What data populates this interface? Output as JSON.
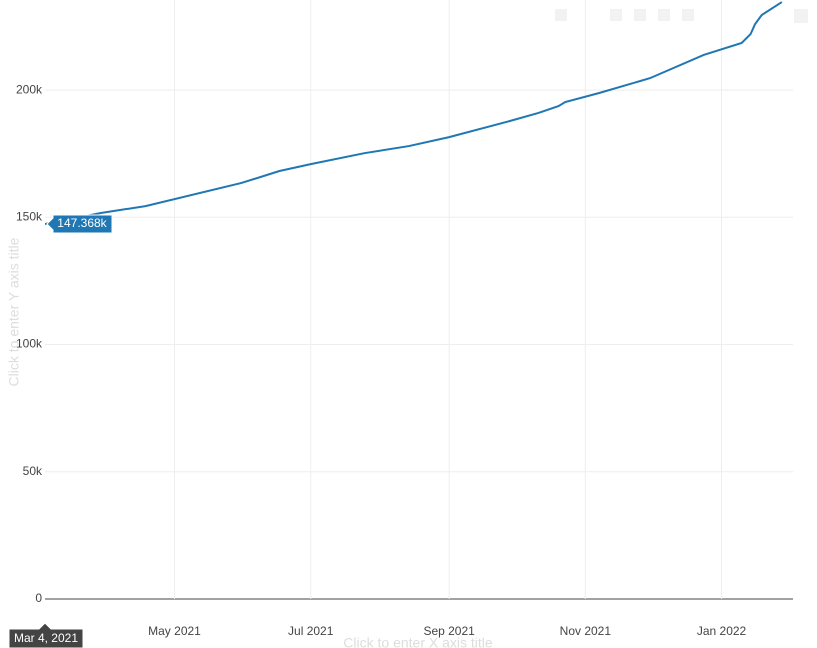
{
  "chart_data": {
    "type": "line",
    "x_title": "Click to enter X axis title",
    "y_title": "Click to enter Y axis title",
    "x": [
      "2021-03-04",
      "2021-03-29",
      "2021-04-18",
      "2021-05-31",
      "2021-06-17",
      "2021-07-01",
      "2021-07-25",
      "2021-08-14",
      "2021-09-01",
      "2021-09-28",
      "2021-10-11",
      "2021-10-20",
      "2021-10-23",
      "2021-11-07",
      "2021-11-30",
      "2021-12-24",
      "2022-01-10",
      "2022-01-14",
      "2022-01-16",
      "2022-01-19",
      "2022-01-28"
    ],
    "series": [
      {
        "color": "#1f77b4",
        "values": [
          147368,
          151700,
          154400,
          163500,
          168200,
          170900,
          175200,
          178000,
          181500,
          187800,
          191000,
          193700,
          195300,
          198800,
          204700,
          213800,
          218500,
          222000,
          225900,
          229500,
          234600
        ]
      }
    ],
    "xlim": [
      "2021-03-04",
      "2022-02-02"
    ],
    "ylim": [
      0,
      235400
    ],
    "xticks": [
      {
        "value": "2021-05-01",
        "label": "May 2021"
      },
      {
        "value": "2021-07-01",
        "label": "Jul 2021"
      },
      {
        "value": "2021-09-01",
        "label": "Sep 2021"
      },
      {
        "value": "2021-11-01",
        "label": "Nov 2021"
      },
      {
        "value": "2022-01-01",
        "label": "Jan 2022"
      }
    ],
    "yticks": [
      0,
      {
        "value": 50000,
        "label": "50k"
      },
      {
        "value": 100000,
        "label": "100k"
      },
      {
        "value": 150000,
        "label": "150k"
      },
      {
        "value": 200000,
        "label": "200k"
      }
    ],
    "grid": true,
    "hover": {
      "x": "2021-03-04",
      "x_label": "Mar 4, 2021",
      "y": 147368,
      "y_label": "147.368k"
    }
  }
}
